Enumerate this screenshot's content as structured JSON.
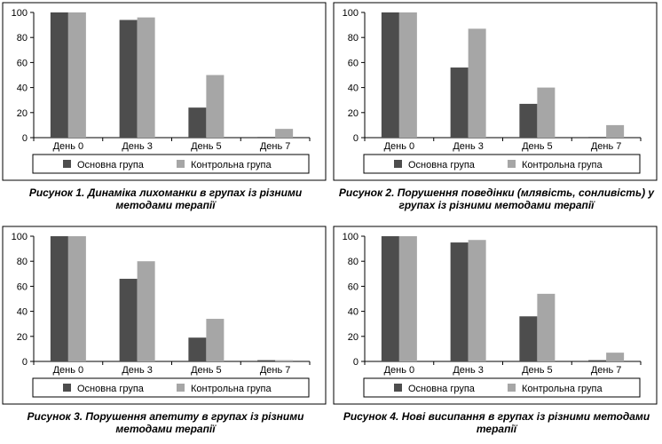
{
  "colors": {
    "main": "#4d4d4d",
    "control": "#a6a6a6",
    "frame": "#000000"
  },
  "chart_data": [
    {
      "type": "bar",
      "categories": [
        "День 0",
        "День 3",
        "День 5",
        "День 7"
      ],
      "series": [
        {
          "name": "Основна група",
          "values": [
            100,
            94,
            24,
            0
          ]
        },
        {
          "name": "Контрольна група",
          "values": [
            100,
            96,
            50,
            7
          ]
        }
      ],
      "ylim": [
        0,
        100
      ],
      "yticks": [
        "0",
        "20",
        "40",
        "60",
        "80",
        "100"
      ],
      "legend": "bottom",
      "caption_num": "Рисунок 1.",
      "caption_text": "Динаміка лихоманки в групах із різними методами терапії"
    },
    {
      "type": "bar",
      "categories": [
        "День 0",
        "День 3",
        "День 5",
        "День 7"
      ],
      "series": [
        {
          "name": "Основна група",
          "values": [
            100,
            56,
            27,
            0
          ]
        },
        {
          "name": "Контрольна група",
          "values": [
            100,
            87,
            40,
            10
          ]
        }
      ],
      "ylim": [
        0,
        100
      ],
      "yticks": [
        "0",
        "20",
        "40",
        "60",
        "80",
        "100"
      ],
      "legend": "bottom",
      "caption_num": "Рисунок 2.",
      "caption_text": "Порушення поведінки (млявість, сонливість) у групах із різними методами терапії"
    },
    {
      "type": "bar",
      "categories": [
        "День 0",
        "День 3",
        "День 5",
        "День 7"
      ],
      "series": [
        {
          "name": "Основна група",
          "values": [
            100,
            66,
            19,
            1
          ]
        },
        {
          "name": "Контрольна група",
          "values": [
            100,
            80,
            34,
            1
          ]
        }
      ],
      "ylim": [
        0,
        100
      ],
      "yticks": [
        "0",
        "20",
        "40",
        "60",
        "80",
        "100"
      ],
      "legend": "bottom",
      "caption_num": "Рисунок 3.",
      "caption_text": "Порушення апетиту в групах із різними методами терапії"
    },
    {
      "type": "bar",
      "categories": [
        "День 0",
        "День 3",
        "День 5",
        "День 7"
      ],
      "series": [
        {
          "name": "Основна група",
          "values": [
            100,
            95,
            36,
            1
          ]
        },
        {
          "name": "Контрольна група",
          "values": [
            100,
            97,
            54,
            7
          ]
        }
      ],
      "ylim": [
        0,
        100
      ],
      "yticks": [
        "0",
        "20",
        "40",
        "60",
        "80",
        "100"
      ],
      "legend": "bottom",
      "caption_num": "Рисунок 4.",
      "caption_text": "Нові висипання в групах із різними методами терапії"
    }
  ]
}
